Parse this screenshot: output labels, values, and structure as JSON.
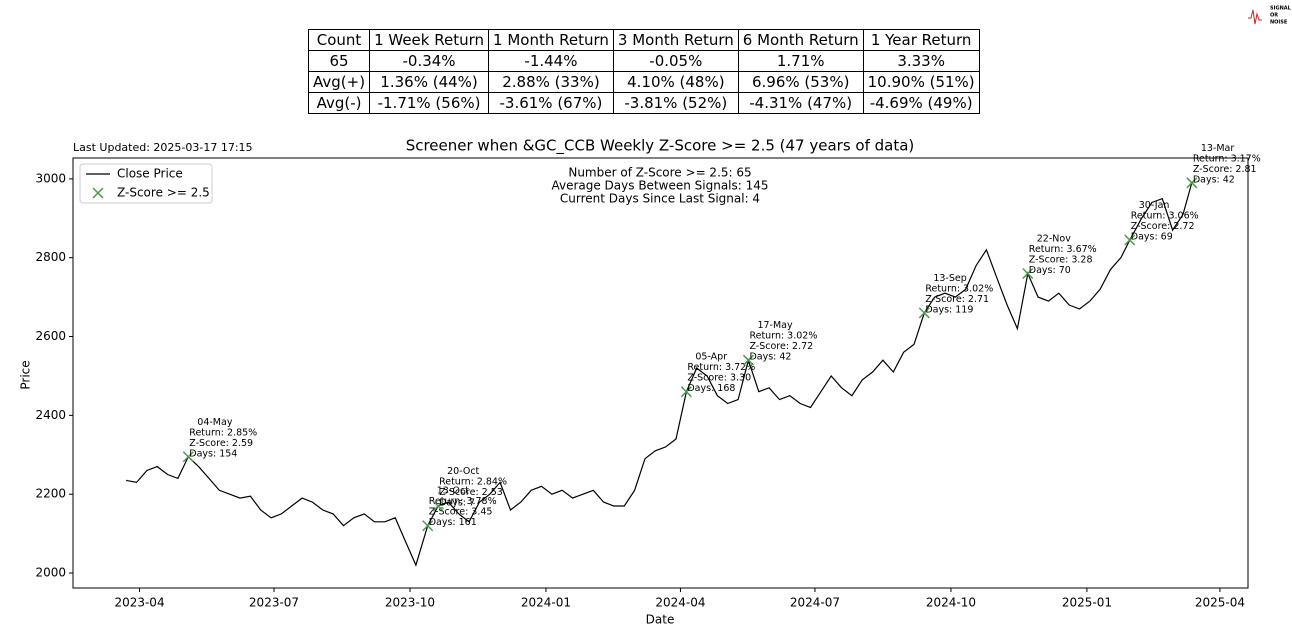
{
  "logo": [
    "SIGNAL",
    "OR",
    "NOISE"
  ],
  "table": {
    "header": [
      "Count",
      "1 Week Return",
      "1 Month Return",
      "3 Month Return",
      "6 Month Return",
      "1 Year Return"
    ],
    "rows": [
      [
        "65",
        "-0.34%",
        "-1.44%",
        "-0.05%",
        "1.71%",
        "3.33%"
      ],
      [
        "Avg(+)",
        "1.36% (44%)",
        "2.88% (33%)",
        "4.10% (48%)",
        "6.96% (53%)",
        "10.90% (51%)"
      ],
      [
        "Avg(-)",
        "-1.71% (56%)",
        "-3.61% (67%)",
        "-3.81% (52%)",
        "-4.31% (47%)",
        "-4.69% (49%)"
      ]
    ]
  },
  "chart_data": {
    "type": "line",
    "title": "Screener when &GC_CCB Weekly Z-Score >= 2.5 (47 years of data)",
    "updated": "Last Updated: 2025-03-17 17:15",
    "stats": [
      "Number of Z-Score >= 2.5: 65",
      "Average Days Between Signals: 145",
      "Current Days Since Last Signal: 4"
    ],
    "xlabel": "Date",
    "ylabel": "Price",
    "legend": "upper left",
    "xlim": [
      "2023-02-15",
      "2025-04-20"
    ],
    "xticks": [
      {
        "value": "2023-04-01",
        "label": "2023-04"
      },
      {
        "value": "2023-07-01",
        "label": "2023-07"
      },
      {
        "value": "2023-10-01",
        "label": "2023-10"
      },
      {
        "value": "2024-01-01",
        "label": "2024-01"
      },
      {
        "value": "2024-04-01",
        "label": "2024-04"
      },
      {
        "value": "2024-07-01",
        "label": "2024-07"
      },
      {
        "value": "2024-10-01",
        "label": "2024-10"
      },
      {
        "value": "2025-01-01",
        "label": "2025-01"
      },
      {
        "value": "2025-04-01",
        "label": "2025-04"
      }
    ],
    "ylim": [
      1962,
      3053
    ],
    "yticks": [
      2000,
      2200,
      2400,
      2600,
      2800,
      3000
    ],
    "series": [
      {
        "name": "Close Price",
        "type": "line",
        "color": "#000000",
        "x": [
          "2023-03-23",
          "2023-03-30",
          "2023-04-06",
          "2023-04-13",
          "2023-04-20",
          "2023-04-27",
          "2023-05-04",
          "2023-05-11",
          "2023-05-18",
          "2023-05-25",
          "2023-06-01",
          "2023-06-08",
          "2023-06-15",
          "2023-06-22",
          "2023-06-29",
          "2023-07-06",
          "2023-07-13",
          "2023-07-20",
          "2023-07-27",
          "2023-08-03",
          "2023-08-10",
          "2023-08-17",
          "2023-08-24",
          "2023-08-31",
          "2023-09-07",
          "2023-09-14",
          "2023-09-21",
          "2023-09-28",
          "2023-10-05",
          "2023-10-13",
          "2023-10-20",
          "2023-10-27",
          "2023-11-03",
          "2023-11-10",
          "2023-11-17",
          "2023-11-24",
          "2023-12-01",
          "2023-12-08",
          "2023-12-15",
          "2023-12-22",
          "2023-12-29",
          "2024-01-05",
          "2024-01-12",
          "2024-01-19",
          "2024-01-26",
          "2024-02-02",
          "2024-02-09",
          "2024-02-16",
          "2024-02-23",
          "2024-03-01",
          "2024-03-08",
          "2024-03-15",
          "2024-03-22",
          "2024-03-29",
          "2024-04-05",
          "2024-04-12",
          "2024-04-19",
          "2024-04-26",
          "2024-05-03",
          "2024-05-10",
          "2024-05-17",
          "2024-05-24",
          "2024-05-31",
          "2024-06-07",
          "2024-06-14",
          "2024-06-21",
          "2024-06-28",
          "2024-07-05",
          "2024-07-12",
          "2024-07-19",
          "2024-07-26",
          "2024-08-02",
          "2024-08-09",
          "2024-08-16",
          "2024-08-23",
          "2024-08-30",
          "2024-09-06",
          "2024-09-13",
          "2024-09-20",
          "2024-09-27",
          "2024-10-04",
          "2024-10-11",
          "2024-10-18",
          "2024-10-25",
          "2024-11-01",
          "2024-11-08",
          "2024-11-15",
          "2024-11-22",
          "2024-11-29",
          "2024-12-06",
          "2024-12-13",
          "2024-12-20",
          "2024-12-27",
          "2025-01-03",
          "2025-01-10",
          "2025-01-17",
          "2025-01-24",
          "2025-01-30",
          "2025-02-07",
          "2025-02-14",
          "2025-02-21",
          "2025-02-28",
          "2025-03-07",
          "2025-03-13",
          "2025-03-14"
        ],
        "values": [
          2235,
          2230,
          2260,
          2270,
          2250,
          2240,
          2295,
          2270,
          2240,
          2210,
          2200,
          2190,
          2195,
          2160,
          2140,
          2150,
          2170,
          2190,
          2180,
          2160,
          2150,
          2120,
          2140,
          2150,
          2130,
          2130,
          2140,
          2080,
          2020,
          2120,
          2170,
          2180,
          2150,
          2130,
          2180,
          2200,
          2230,
          2160,
          2180,
          2210,
          2220,
          2200,
          2210,
          2190,
          2200,
          2210,
          2180,
          2170,
          2170,
          2210,
          2290,
          2310,
          2320,
          2340,
          2460,
          2520,
          2500,
          2450,
          2430,
          2440,
          2540,
          2460,
          2470,
          2440,
          2450,
          2430,
          2420,
          2460,
          2500,
          2470,
          2450,
          2490,
          2510,
          2540,
          2510,
          2560,
          2580,
          2660,
          2700,
          2710,
          2700,
          2720,
          2780,
          2820,
          2750,
          2680,
          2620,
          2760,
          2700,
          2690,
          2710,
          2680,
          2670,
          2690,
          2720,
          2770,
          2800,
          2845,
          2900,
          2940,
          2950,
          2870,
          2910,
          2990,
          2990
        ]
      },
      {
        "name": "Z-Score >= 2.5",
        "type": "scatter",
        "color": "#4a9a4a",
        "x": [
          "2023-05-04",
          "2023-10-13",
          "2023-10-20",
          "2024-04-05",
          "2024-05-17",
          "2024-09-13",
          "2024-11-22",
          "2025-01-30",
          "2025-03-13"
        ],
        "values": [
          2295,
          2120,
          2170,
          2460,
          2540,
          2660,
          2760,
          2845,
          2990
        ]
      }
    ],
    "annotations": [
      [
        "04-May",
        "Return: 2.85%",
        "Z-Score: 2.59",
        "Days: 154"
      ],
      [
        "13-Oct",
        "Return: 3.78%",
        "Z-Score: 3.45",
        "Days: 161"
      ],
      [
        "20-Oct",
        "Return: 2.84%",
        "Z-Score: 2.53",
        "Days: 7"
      ],
      [
        "05-Apr",
        "Return: 3.72%",
        "Z-Score: 3.30",
        "Days: 168"
      ],
      [
        "17-May",
        "Return: 3.02%",
        "Z-Score: 2.72",
        "Days: 42"
      ],
      [
        "13-Sep",
        "Return: 3.02%",
        "Z-Score: 2.71",
        "Days: 119"
      ],
      [
        "22-Nov",
        "Return: 3.67%",
        "Z-Score: 3.28",
        "Days: 70"
      ],
      [
        "30-Jan",
        "Return: 3.06%",
        "Z-Score: 2.72",
        "Days: 69"
      ],
      [
        "13-Mar",
        "Return: 3.17%",
        "Z-Score: 2.81",
        "Days: 42"
      ]
    ]
  }
}
